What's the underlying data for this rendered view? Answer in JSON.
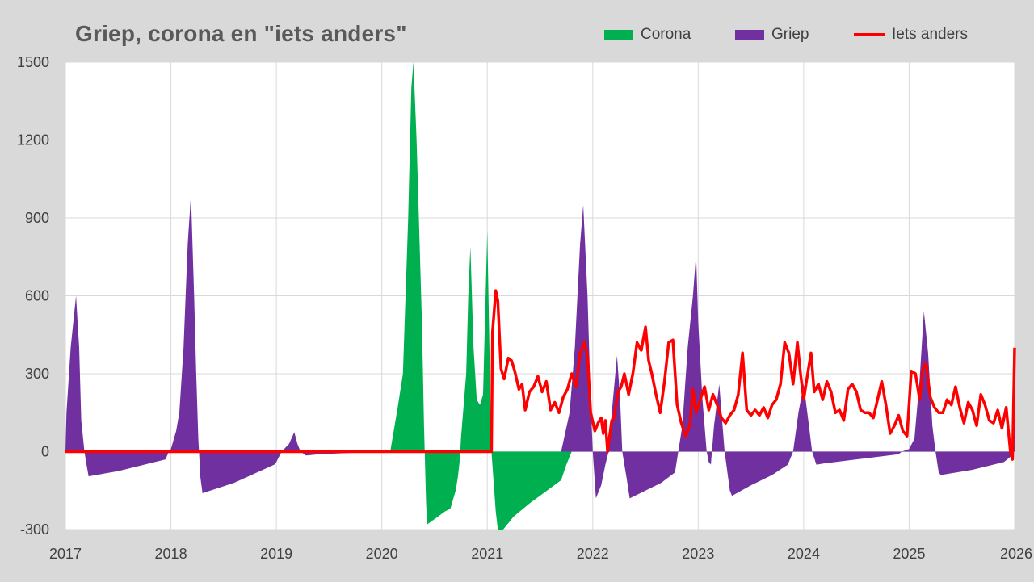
{
  "chart_data": {
    "type": "area",
    "title": "Griep, corona en \"iets anders\"",
    "xlabel": "",
    "ylabel": "",
    "xlim": [
      2017,
      2026
    ],
    "ylim": [
      -300,
      1500
    ],
    "y_ticks": [
      -300,
      0,
      300,
      600,
      900,
      1200,
      1500
    ],
    "x_ticks": [
      2017,
      2018,
      2019,
      2020,
      2021,
      2022,
      2023,
      2024,
      2025,
      2026
    ],
    "grid": true,
    "legend_position": "top-right",
    "series": [
      {
        "name": "Corona",
        "type": "area",
        "color": "#00b050",
        "points": [
          [
            2020.08,
            0
          ],
          [
            2020.15,
            170
          ],
          [
            2020.2,
            300
          ],
          [
            2020.25,
            900
          ],
          [
            2020.28,
            1400
          ],
          [
            2020.3,
            1500
          ],
          [
            2020.33,
            1200
          ],
          [
            2020.38,
            500
          ],
          [
            2020.4,
            100
          ],
          [
            2020.42,
            -200
          ],
          [
            2020.43,
            -280
          ],
          [
            2020.5,
            -260
          ],
          [
            2020.6,
            -230
          ],
          [
            2020.65,
            -220
          ],
          [
            2020.7,
            -150
          ],
          [
            2020.72,
            -100
          ],
          [
            2020.74,
            -30
          ],
          [
            2020.75,
            50
          ],
          [
            2020.8,
            300
          ],
          [
            2020.82,
            600
          ],
          [
            2020.84,
            790
          ],
          [
            2020.87,
            400
          ],
          [
            2020.9,
            200
          ],
          [
            2020.93,
            180
          ],
          [
            2020.96,
            220
          ],
          [
            2021.0,
            850
          ],
          [
            2021.03,
            200
          ],
          [
            2021.04,
            0
          ],
          [
            2021.08,
            -230
          ],
          [
            2021.1,
            -300
          ],
          [
            2021.15,
            -300
          ],
          [
            2021.25,
            -250
          ],
          [
            2021.4,
            -200
          ],
          [
            2021.6,
            -140
          ],
          [
            2021.7,
            -110
          ],
          [
            2021.75,
            -50
          ],
          [
            2021.8,
            0
          ],
          [
            2021.85,
            100
          ],
          [
            2021.9,
            240
          ],
          [
            2021.95,
            100
          ],
          [
            2021.98,
            0
          ]
        ]
      },
      {
        "name": "Griep",
        "type": "area",
        "color": "#7030a0",
        "points": [
          [
            2017.0,
            0
          ],
          [
            2017.01,
            150
          ],
          [
            2017.05,
            400
          ],
          [
            2017.1,
            600
          ],
          [
            2017.13,
            400
          ],
          [
            2017.15,
            120
          ],
          [
            2017.18,
            0
          ],
          [
            2017.2,
            -50
          ],
          [
            2017.22,
            -95
          ],
          [
            2017.5,
            -75
          ],
          [
            2017.95,
            -30
          ],
          [
            2017.98,
            0
          ],
          [
            2018.0,
            10
          ],
          [
            2018.05,
            80
          ],
          [
            2018.08,
            150
          ],
          [
            2018.12,
            400
          ],
          [
            2018.16,
            800
          ],
          [
            2018.19,
            990
          ],
          [
            2018.22,
            600
          ],
          [
            2018.24,
            300
          ],
          [
            2018.26,
            50
          ],
          [
            2018.28,
            -100
          ],
          [
            2018.3,
            -160
          ],
          [
            2018.6,
            -120
          ],
          [
            2018.98,
            -50
          ],
          [
            2019.0,
            -40
          ],
          [
            2019.05,
            0
          ],
          [
            2019.12,
            30
          ],
          [
            2019.17,
            75
          ],
          [
            2019.2,
            30
          ],
          [
            2019.23,
            0
          ],
          [
            2019.28,
            -15
          ],
          [
            2019.4,
            -10
          ],
          [
            2019.98,
            0
          ],
          [
            2021.7,
            0
          ],
          [
            2021.78,
            150
          ],
          [
            2021.83,
            400
          ],
          [
            2021.88,
            800
          ],
          [
            2021.91,
            950
          ],
          [
            2021.95,
            600
          ],
          [
            2021.98,
            200
          ],
          [
            2022.0,
            0
          ],
          [
            2022.03,
            -180
          ],
          [
            2022.08,
            -130
          ],
          [
            2022.12,
            -50
          ],
          [
            2022.15,
            0
          ],
          [
            2022.18,
            150
          ],
          [
            2022.23,
            370
          ],
          [
            2022.26,
            200
          ],
          [
            2022.28,
            0
          ],
          [
            2022.32,
            -100
          ],
          [
            2022.35,
            -180
          ],
          [
            2022.45,
            -160
          ],
          [
            2022.65,
            -120
          ],
          [
            2022.78,
            -80
          ],
          [
            2022.85,
            100
          ],
          [
            2022.9,
            400
          ],
          [
            2022.95,
            600
          ],
          [
            2022.98,
            760
          ],
          [
            2023.0,
            500
          ],
          [
            2023.04,
            200
          ],
          [
            2023.08,
            0
          ],
          [
            2023.1,
            -40
          ],
          [
            2023.12,
            -50
          ],
          [
            2023.15,
            100
          ],
          [
            2023.2,
            260
          ],
          [
            2023.25,
            0
          ],
          [
            2023.3,
            -150
          ],
          [
            2023.32,
            -170
          ],
          [
            2023.5,
            -130
          ],
          [
            2023.7,
            -90
          ],
          [
            2023.85,
            -50
          ],
          [
            2023.9,
            0
          ],
          [
            2023.95,
            150
          ],
          [
            2024.0,
            260
          ],
          [
            2024.05,
            100
          ],
          [
            2024.08,
            0
          ],
          [
            2024.12,
            -50
          ],
          [
            2024.2,
            -45
          ],
          [
            2024.4,
            -35
          ],
          [
            2024.9,
            -10
          ],
          [
            2024.93,
            0
          ],
          [
            2025.0,
            10
          ],
          [
            2025.05,
            50
          ],
          [
            2025.1,
            280
          ],
          [
            2025.14,
            540
          ],
          [
            2025.18,
            380
          ],
          [
            2025.22,
            100
          ],
          [
            2025.25,
            0
          ],
          [
            2025.28,
            -80
          ],
          [
            2025.3,
            -90
          ],
          [
            2025.6,
            -70
          ],
          [
            2025.9,
            -40
          ],
          [
            2025.96,
            -20
          ],
          [
            2025.99,
            0
          ],
          [
            2026.0,
            150
          ]
        ]
      },
      {
        "name": "Iets anders",
        "type": "line",
        "color": "#ff0000",
        "points": [
          [
            2017.0,
            0
          ],
          [
            2021.04,
            0
          ],
          [
            2021.05,
            460
          ],
          [
            2021.08,
            620
          ],
          [
            2021.1,
            580
          ],
          [
            2021.13,
            320
          ],
          [
            2021.16,
            280
          ],
          [
            2021.2,
            360
          ],
          [
            2021.23,
            350
          ],
          [
            2021.26,
            310
          ],
          [
            2021.3,
            240
          ],
          [
            2021.33,
            260
          ],
          [
            2021.36,
            160
          ],
          [
            2021.4,
            230
          ],
          [
            2021.44,
            250
          ],
          [
            2021.48,
            290
          ],
          [
            2021.52,
            230
          ],
          [
            2021.56,
            270
          ],
          [
            2021.6,
            160
          ],
          [
            2021.64,
            190
          ],
          [
            2021.68,
            150
          ],
          [
            2021.72,
            210
          ],
          [
            2021.76,
            240
          ],
          [
            2021.8,
            300
          ],
          [
            2021.84,
            250
          ],
          [
            2021.88,
            380
          ],
          [
            2021.92,
            420
          ],
          [
            2021.95,
            370
          ],
          [
            2021.98,
            150
          ],
          [
            2022.02,
            80
          ],
          [
            2022.05,
            110
          ],
          [
            2022.08,
            130
          ],
          [
            2022.1,
            70
          ],
          [
            2022.12,
            120
          ],
          [
            2022.14,
            0
          ],
          [
            2022.18,
            120
          ],
          [
            2022.2,
            130
          ],
          [
            2022.24,
            230
          ],
          [
            2022.27,
            250
          ],
          [
            2022.3,
            300
          ],
          [
            2022.34,
            220
          ],
          [
            2022.38,
            300
          ],
          [
            2022.42,
            420
          ],
          [
            2022.46,
            390
          ],
          [
            2022.5,
            480
          ],
          [
            2022.53,
            350
          ],
          [
            2022.56,
            300
          ],
          [
            2022.6,
            220
          ],
          [
            2022.64,
            150
          ],
          [
            2022.68,
            270
          ],
          [
            2022.72,
            420
          ],
          [
            2022.76,
            430
          ],
          [
            2022.8,
            180
          ],
          [
            2022.84,
            110
          ],
          [
            2022.88,
            60
          ],
          [
            2022.92,
            100
          ],
          [
            2022.95,
            240
          ],
          [
            2022.98,
            150
          ],
          [
            2023.02,
            200
          ],
          [
            2023.06,
            250
          ],
          [
            2023.1,
            160
          ],
          [
            2023.14,
            220
          ],
          [
            2023.18,
            180
          ],
          [
            2023.22,
            130
          ],
          [
            2023.26,
            110
          ],
          [
            2023.3,
            140
          ],
          [
            2023.34,
            160
          ],
          [
            2023.38,
            220
          ],
          [
            2023.42,
            380
          ],
          [
            2023.46,
            160
          ],
          [
            2023.5,
            140
          ],
          [
            2023.54,
            160
          ],
          [
            2023.58,
            140
          ],
          [
            2023.62,
            170
          ],
          [
            2023.66,
            130
          ],
          [
            2023.7,
            180
          ],
          [
            2023.74,
            200
          ],
          [
            2023.78,
            260
          ],
          [
            2023.82,
            420
          ],
          [
            2023.86,
            380
          ],
          [
            2023.9,
            260
          ],
          [
            2023.94,
            420
          ],
          [
            2023.97,
            300
          ],
          [
            2024.0,
            200
          ],
          [
            2024.03,
            280
          ],
          [
            2024.07,
            380
          ],
          [
            2024.1,
            230
          ],
          [
            2024.14,
            260
          ],
          [
            2024.18,
            200
          ],
          [
            2024.22,
            270
          ],
          [
            2024.26,
            230
          ],
          [
            2024.3,
            150
          ],
          [
            2024.34,
            160
          ],
          [
            2024.38,
            120
          ],
          [
            2024.42,
            240
          ],
          [
            2024.46,
            260
          ],
          [
            2024.5,
            230
          ],
          [
            2024.54,
            160
          ],
          [
            2024.58,
            150
          ],
          [
            2024.62,
            150
          ],
          [
            2024.66,
            130
          ],
          [
            2024.7,
            200
          ],
          [
            2024.74,
            270
          ],
          [
            2024.78,
            180
          ],
          [
            2024.82,
            70
          ],
          [
            2024.86,
            100
          ],
          [
            2024.9,
            140
          ],
          [
            2024.94,
            80
          ],
          [
            2024.98,
            60
          ],
          [
            2025.02,
            310
          ],
          [
            2025.06,
            300
          ],
          [
            2025.1,
            200
          ],
          [
            2025.13,
            320
          ],
          [
            2025.16,
            340
          ],
          [
            2025.2,
            210
          ],
          [
            2025.24,
            170
          ],
          [
            2025.28,
            150
          ],
          [
            2025.32,
            150
          ],
          [
            2025.36,
            200
          ],
          [
            2025.4,
            180
          ],
          [
            2025.44,
            250
          ],
          [
            2025.48,
            170
          ],
          [
            2025.52,
            110
          ],
          [
            2025.56,
            190
          ],
          [
            2025.6,
            160
          ],
          [
            2025.64,
            100
          ],
          [
            2025.68,
            220
          ],
          [
            2025.72,
            180
          ],
          [
            2025.76,
            120
          ],
          [
            2025.8,
            110
          ],
          [
            2025.84,
            160
          ],
          [
            2025.88,
            90
          ],
          [
            2025.92,
            170
          ],
          [
            2025.96,
            0
          ],
          [
            2025.98,
            -30
          ],
          [
            2026.0,
            400
          ]
        ]
      }
    ]
  }
}
